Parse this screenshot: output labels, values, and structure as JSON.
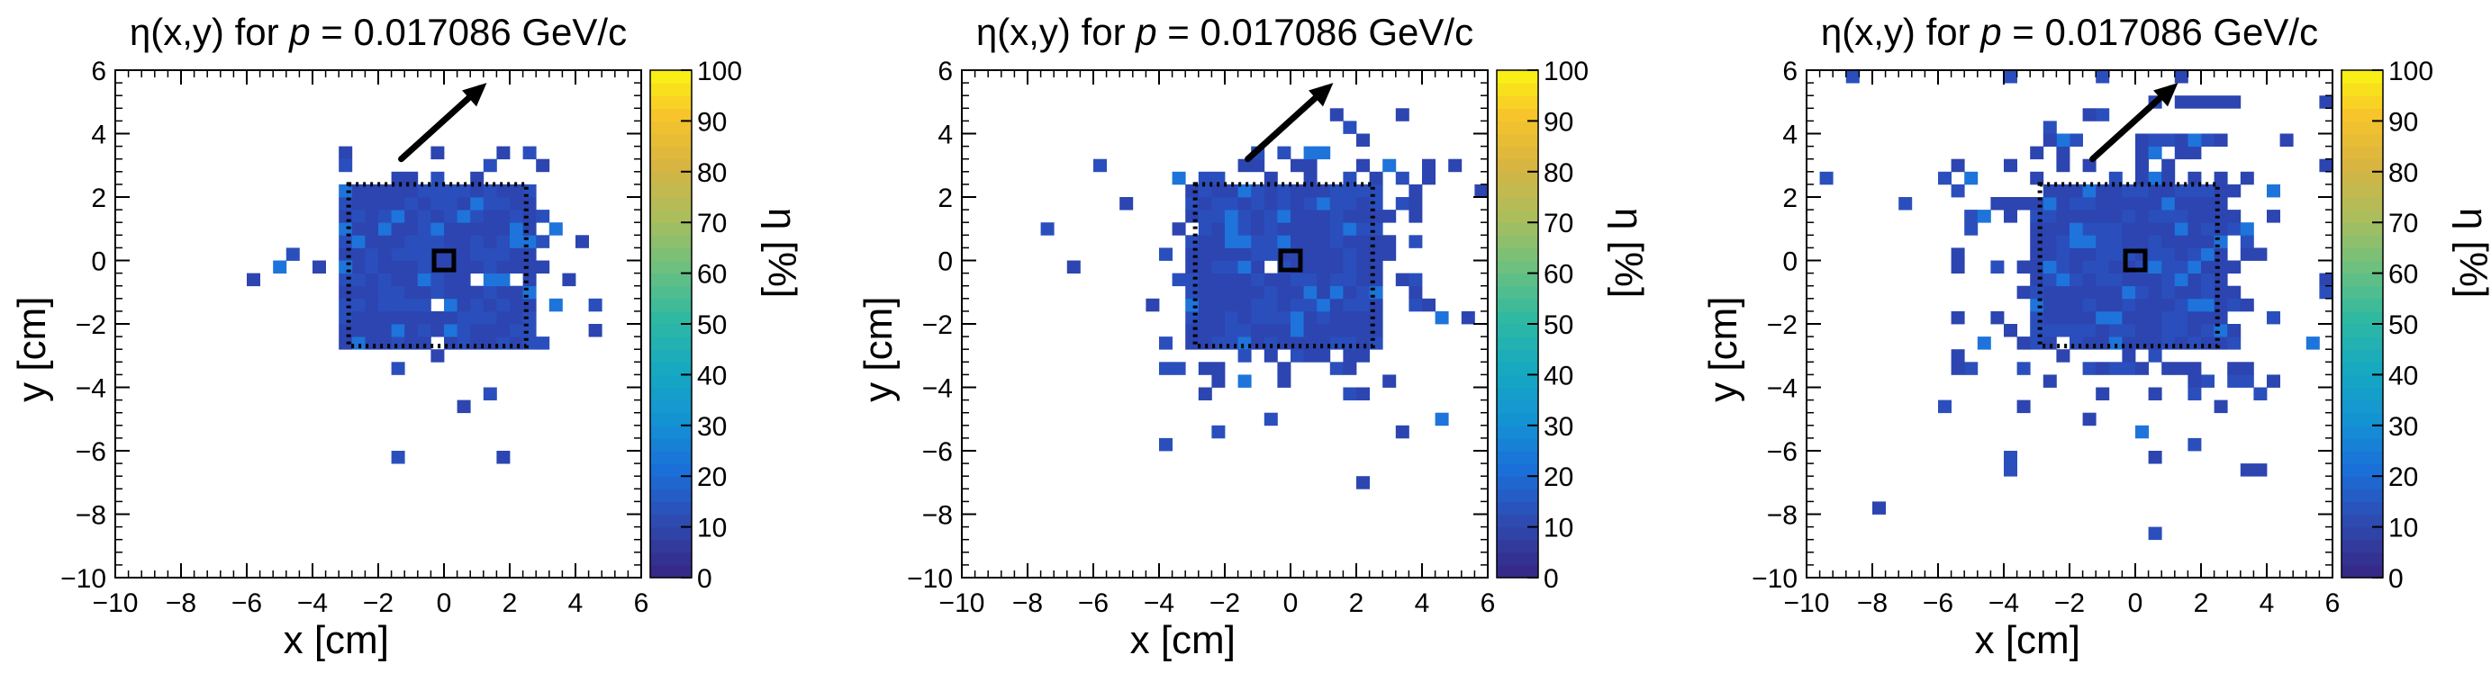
{
  "figure": {
    "description_free": true
  },
  "chart_data": [
    {
      "type": "heatmap",
      "title_prefix": "η(x,y) for ",
      "title_var": "p",
      "title_suffix": " = 0.017086 GeV/c",
      "xlabel": "x [cm]",
      "ylabel": "y [cm]",
      "zlabel": "η [%]",
      "xlim": [
        -10,
        6
      ],
      "ylim": [
        -10,
        6
      ],
      "zlim": [
        0,
        100
      ],
      "xticks": [
        -10,
        -8,
        -6,
        -4,
        -2,
        0,
        2,
        4,
        6
      ],
      "yticks": [
        -10,
        -8,
        -6,
        -4,
        -2,
        0,
        2,
        4,
        6
      ],
      "zticks": [
        0,
        10,
        20,
        30,
        40,
        50,
        60,
        70,
        80,
        90,
        100
      ],
      "arrow": {
        "from": [
          -1.3,
          3.2
        ],
        "to": [
          1.3,
          5.6
        ]
      },
      "fiducial_box": {
        "x": [
          -2.9,
          2.5
        ],
        "y": [
          -2.7,
          2.4
        ]
      },
      "center_marker": {
        "x": [
          -0.3,
          0.3
        ],
        "y": [
          -0.3,
          0.3
        ]
      },
      "cloud": {
        "sigma": 1.5,
        "seed": 11,
        "tails": 30
      },
      "typical_efficiency_percent": 6
    },
    {
      "type": "heatmap",
      "title_prefix": "η(x,y) for ",
      "title_var": "p",
      "title_suffix": " = 0.017086 GeV/c",
      "xlabel": "x [cm]",
      "ylabel": "y [cm]",
      "zlabel": "η [%]",
      "xlim": [
        -10,
        6
      ],
      "ylim": [
        -10,
        6
      ],
      "zlim": [
        0,
        100
      ],
      "xticks": [
        -10,
        -8,
        -6,
        -4,
        -2,
        0,
        2,
        4,
        6
      ],
      "yticks": [
        -10,
        -8,
        -6,
        -4,
        -2,
        0,
        2,
        4,
        6
      ],
      "zticks": [
        0,
        10,
        20,
        30,
        40,
        50,
        60,
        70,
        80,
        90,
        100
      ],
      "arrow": {
        "from": [
          -1.3,
          3.2
        ],
        "to": [
          1.3,
          5.6
        ]
      },
      "fiducial_box": {
        "x": [
          -2.9,
          2.5
        ],
        "y": [
          -2.7,
          2.4
        ]
      },
      "center_marker": {
        "x": [
          -0.3,
          0.3
        ],
        "y": [
          -0.3,
          0.3
        ]
      },
      "cloud": {
        "sigma": 1.8,
        "seed": 23,
        "tails": 70
      },
      "typical_efficiency_percent": 6
    },
    {
      "type": "heatmap",
      "title_prefix": "η(x,y) for ",
      "title_var": "p",
      "title_suffix": " = 0.017086 GeV/c",
      "xlabel": "x [cm]",
      "ylabel": "y [cm]",
      "zlabel": "η [%]",
      "xlim": [
        -10,
        6
      ],
      "ylim": [
        -10,
        6
      ],
      "zlim": [
        0,
        100
      ],
      "xticks": [
        -10,
        -8,
        -6,
        -4,
        -2,
        0,
        2,
        4,
        6
      ],
      "yticks": [
        -10,
        -8,
        -6,
        -4,
        -2,
        0,
        2,
        4,
        6
      ],
      "zticks": [
        0,
        10,
        20,
        30,
        40,
        50,
        60,
        70,
        80,
        90,
        100
      ],
      "arrow": {
        "from": [
          -1.3,
          3.2
        ],
        "to": [
          1.3,
          5.6
        ]
      },
      "fiducial_box": {
        "x": [
          -2.9,
          2.5
        ],
        "y": [
          -2.7,
          2.4
        ]
      },
      "center_marker": {
        "x": [
          -0.3,
          0.3
        ],
        "y": [
          -0.3,
          0.3
        ]
      },
      "cloud": {
        "sigma": 2.1,
        "seed": 37,
        "tails": 110
      },
      "typical_efficiency_percent": 6
    }
  ],
  "colors": {
    "palette": [
      "#352a87",
      "#2e4bb1",
      "#1a6fd9",
      "#1493d2",
      "#16a9c0",
      "#2fb9a1",
      "#6ec07e",
      "#acbd5c",
      "#d8b441",
      "#f7c52b",
      "#f9fb0e"
    ],
    "cell": "#2c45b0",
    "cell_alt": "#2a4fbd",
    "cell_hi": "#1e74da"
  }
}
